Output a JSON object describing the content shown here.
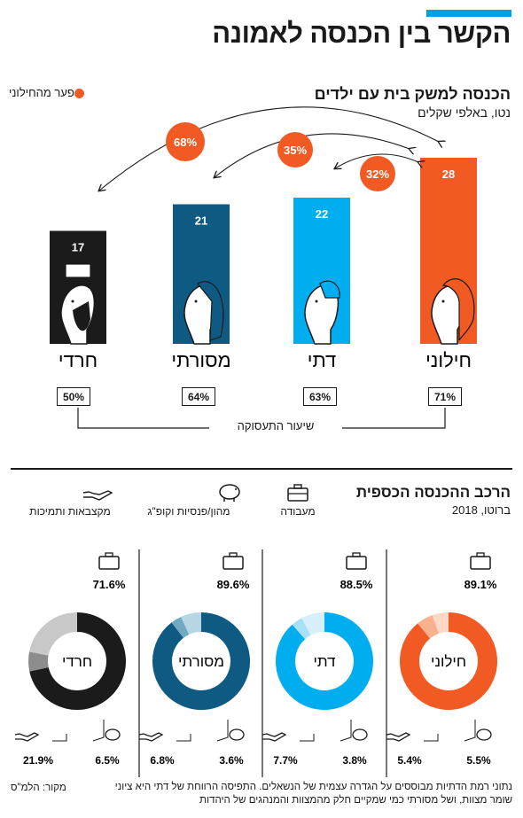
{
  "colors": {
    "chiloni": "#f15a22",
    "dati": "#00aeef",
    "masorti": "#0f5a82",
    "haredi": "#1b1b1b",
    "gap_bubble": "#f15a22"
  },
  "header": {
    "title": "הקשר בין הכנסה לאמונה"
  },
  "income": {
    "subtitle": "הכנסה למשק בית עם ילדים",
    "unit": "נטו, באלפי שקלים",
    "legend": "פער מהחילוני"
  },
  "employment": {
    "label": "שיעור התעסוקה"
  },
  "composition": {
    "title": "הרכב ההכנסה הכספית",
    "unit": "ברוטו, 2018",
    "legend": {
      "work": "מעבודה",
      "capital": "מהון/פנסיות וקופ\"ג",
      "allowances": "מקצבאות ותמיכות"
    }
  },
  "footer": {
    "note": "נתוני רמת הדתיות מבוססים על הגדרה עצמית של הנשאלים. התפיסה הרווחת של דתי היא ציוני שומר מצוות, ושל מסורתי כמי שמקיים חלק מהמצוות והמנהגים של היהדות",
    "source": "מקור: הלמ\"ס"
  },
  "chart_data": [
    {
      "type": "bar",
      "title": "הכנסה למשק בית עם ילדים",
      "ylabel": "נטו, באלפי שקלים",
      "categories": [
        "חילוני",
        "דתי",
        "מסורתי",
        "חרדי"
      ],
      "values": [
        28,
        22,
        21,
        17
      ],
      "values_text": [
        "28",
        "22",
        "21",
        "17"
      ],
      "ylim": [
        0,
        30
      ],
      "gap_from_secular": [
        {
          "target": "דתי",
          "label": "32%"
        },
        {
          "target": "מסורתי",
          "label": "35%"
        },
        {
          "target": "חרדי",
          "label": "68%"
        }
      ],
      "employment_rate": [
        "71%",
        "63%",
        "64%",
        "50%"
      ]
    },
    {
      "type": "pie",
      "title": "הרכב ההכנסה הכספית",
      "subtitle": "ברוטו, 2018",
      "components": [
        "מעבודה",
        "מהון/פנסיות וקופ\"ג",
        "מקצבאות ותמיכות"
      ],
      "groups": [
        {
          "name": "חילוני",
          "work": 89.1,
          "capital": 5.5,
          "allowances": 5.4,
          "labels": {
            "work": "89.1%",
            "capital": "5.5%",
            "allowances": "5.4%"
          }
        },
        {
          "name": "דתי",
          "work": 88.5,
          "capital": 3.8,
          "allowances": 7.7,
          "labels": {
            "work": "88.5%",
            "capital": "3.8%",
            "allowances": "7.7%"
          }
        },
        {
          "name": "מסורתי",
          "work": 89.6,
          "capital": 3.6,
          "allowances": 6.8,
          "labels": {
            "work": "89.6%",
            "capital": "3.6%",
            "allowances": "6.8%"
          }
        },
        {
          "name": "חרדי",
          "work": 71.6,
          "capital": 6.5,
          "allowances": 21.9,
          "labels": {
            "work": "71.6%",
            "capital": "6.5%",
            "allowances": "21.9%"
          }
        }
      ]
    }
  ]
}
